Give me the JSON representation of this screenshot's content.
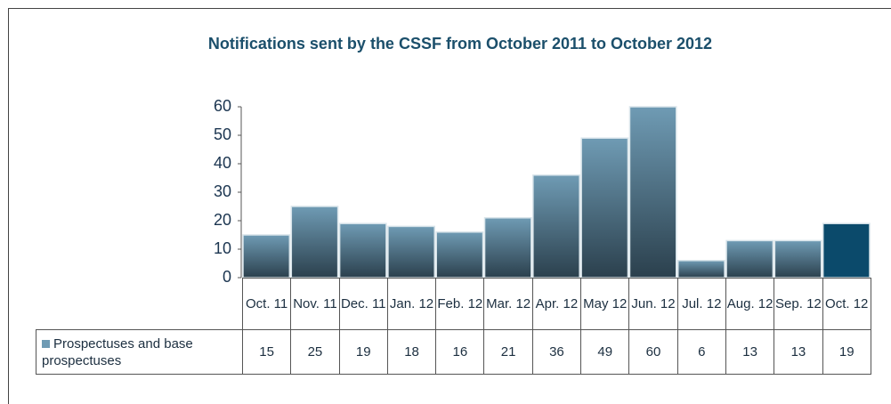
{
  "chart_data": {
    "type": "bar",
    "title": "Notifications sent by the CSSF from October 2011 to October 2012",
    "categories": [
      "Oct. 11",
      "Nov. 11",
      "Dec. 11",
      "Jan. 12",
      "Feb. 12",
      "Mar. 12",
      "Apr. 12",
      "May 12",
      "Jun. 12",
      "Jul. 12",
      "Aug. 12",
      "Sep. 12",
      "Oct. 12"
    ],
    "series": [
      {
        "name": "Prospectuses and base prospectuses",
        "color": "#6f9bb4",
        "color_bottom": "#2b404d",
        "values": [
          15,
          25,
          19,
          18,
          16,
          21,
          36,
          49,
          60,
          6,
          13,
          13,
          19
        ]
      }
    ],
    "highlight": {
      "index": 12,
      "color": "#0b4a6b"
    },
    "ylim": [
      0,
      60
    ],
    "yticks": [
      0,
      10,
      20,
      30,
      40,
      50,
      60
    ],
    "grid": false
  }
}
